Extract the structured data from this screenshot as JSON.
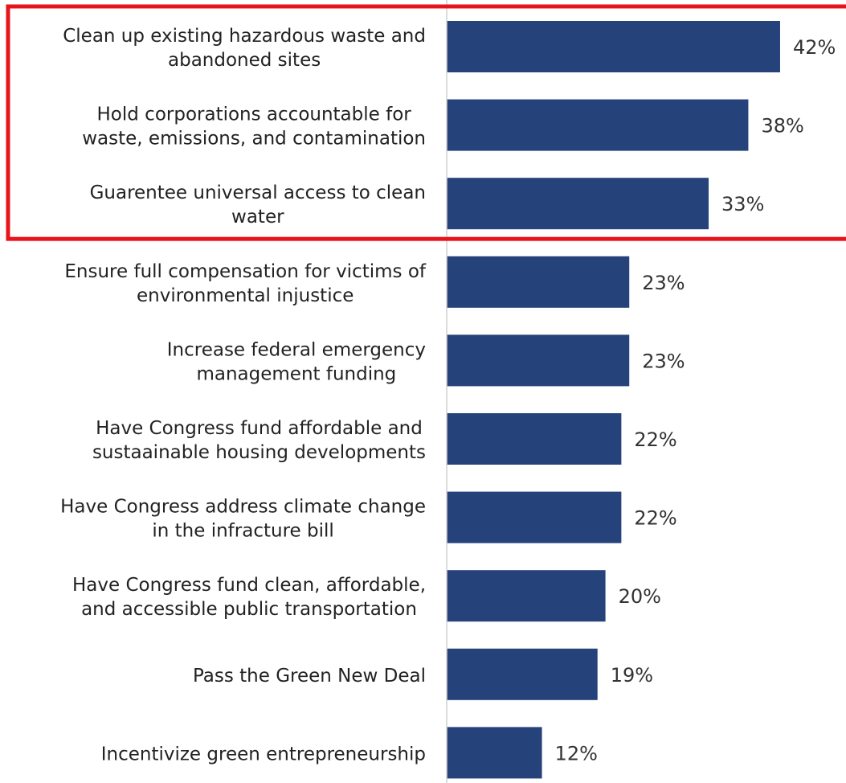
{
  "chart_data": {
    "type": "bar",
    "orientation": "horizontal",
    "categories": [
      [
        "Clean up existing hazardous waste and",
        "abandoned sites"
      ],
      [
        "Hold corporations accountable for",
        "waste, emissions, and contamination"
      ],
      [
        "Guarentee universal access to clean",
        "water"
      ],
      [
        "Ensure full compensation for victims of",
        "environmental injustice"
      ],
      [
        "Increase federal emergency",
        "management funding"
      ],
      [
        "Have Congress fund affordable and",
        "sustaainable housing developments"
      ],
      [
        "Have Congress address climate change",
        "in the infracture bill"
      ],
      [
        "Have Congress fund clean, affordable,",
        "and accessible public transportation"
      ],
      [
        "Pass the Green New Deal"
      ],
      [
        "Incentivize green entrepreneurship"
      ]
    ],
    "values": [
      42,
      38,
      33,
      23,
      23,
      22,
      22,
      20,
      19,
      12
    ],
    "value_labels": [
      "42%",
      "38%",
      "33%",
      "23%",
      "23%",
      "22%",
      "22%",
      "20%",
      "19%",
      "12%"
    ],
    "xlim": [
      0,
      50
    ],
    "bar_color": "#26427a",
    "axis_color": "#d0d0d0",
    "highlight": {
      "from_index": 0,
      "to_index": 2,
      "color": "#e8141c"
    },
    "grid": false,
    "legend": "none"
  }
}
